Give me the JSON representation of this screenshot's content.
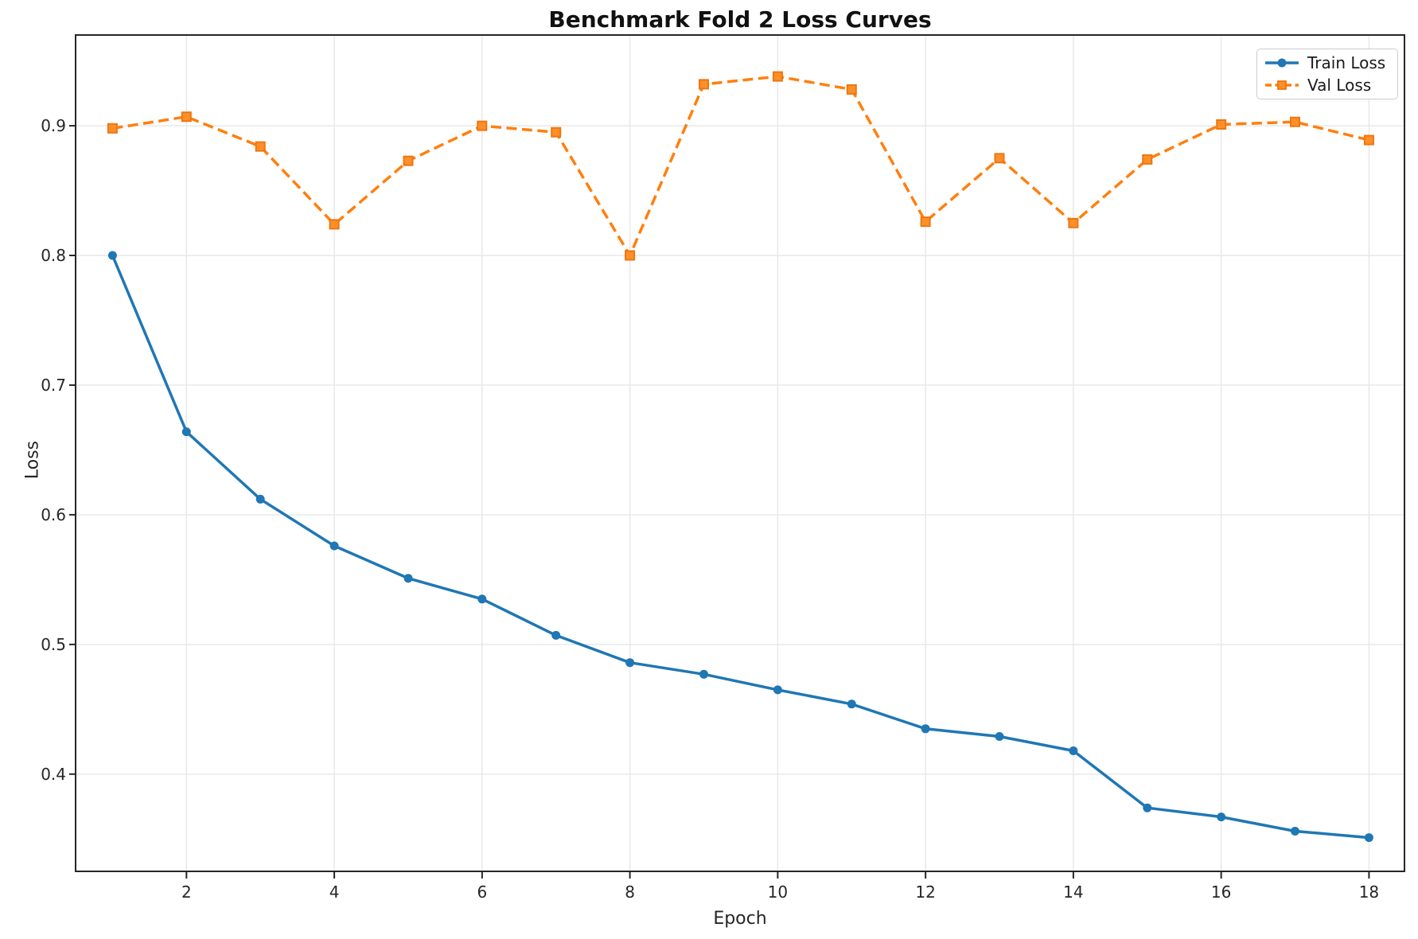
{
  "chart_data": {
    "type": "line",
    "title": "Benchmark Fold 2 Loss Curves",
    "xlabel": "Epoch",
    "ylabel": "Loss",
    "x": [
      1,
      2,
      3,
      4,
      5,
      6,
      7,
      8,
      9,
      10,
      11,
      12,
      13,
      14,
      15,
      16,
      17,
      18
    ],
    "series": [
      {
        "name": "Train Loss",
        "color": "#1f77b4",
        "marker": "circle",
        "linestyle": "solid",
        "values": [
          0.8,
          0.664,
          0.612,
          0.576,
          0.551,
          0.535,
          0.507,
          0.486,
          0.477,
          0.465,
          0.454,
          0.435,
          0.429,
          0.418,
          0.374,
          0.367,
          0.356,
          0.351
        ]
      },
      {
        "name": "Val Loss",
        "color": "#ff7f0e",
        "marker": "square",
        "linestyle": "dashed",
        "values": [
          0.898,
          0.907,
          0.884,
          0.824,
          0.873,
          0.9,
          0.895,
          0.8,
          0.932,
          0.938,
          0.928,
          0.826,
          0.875,
          0.825,
          0.874,
          0.901,
          0.903,
          0.889
        ]
      }
    ],
    "xticks": [
      2,
      4,
      6,
      8,
      10,
      12,
      14,
      16,
      18
    ],
    "yticks": [
      0.4,
      0.5,
      0.6,
      0.7,
      0.8,
      0.9
    ],
    "xlim": [
      0.5,
      18.48
    ],
    "ylim": [
      0.325,
      0.97
    ],
    "grid": true,
    "legend_position": "upper right",
    "colors": {
      "grid": "#e7e7e7",
      "spine": "#262626",
      "tick_text": "#262626",
      "background": "#ffffff",
      "square_fill": "#ff9029",
      "square_edge": "#ed7610"
    }
  }
}
